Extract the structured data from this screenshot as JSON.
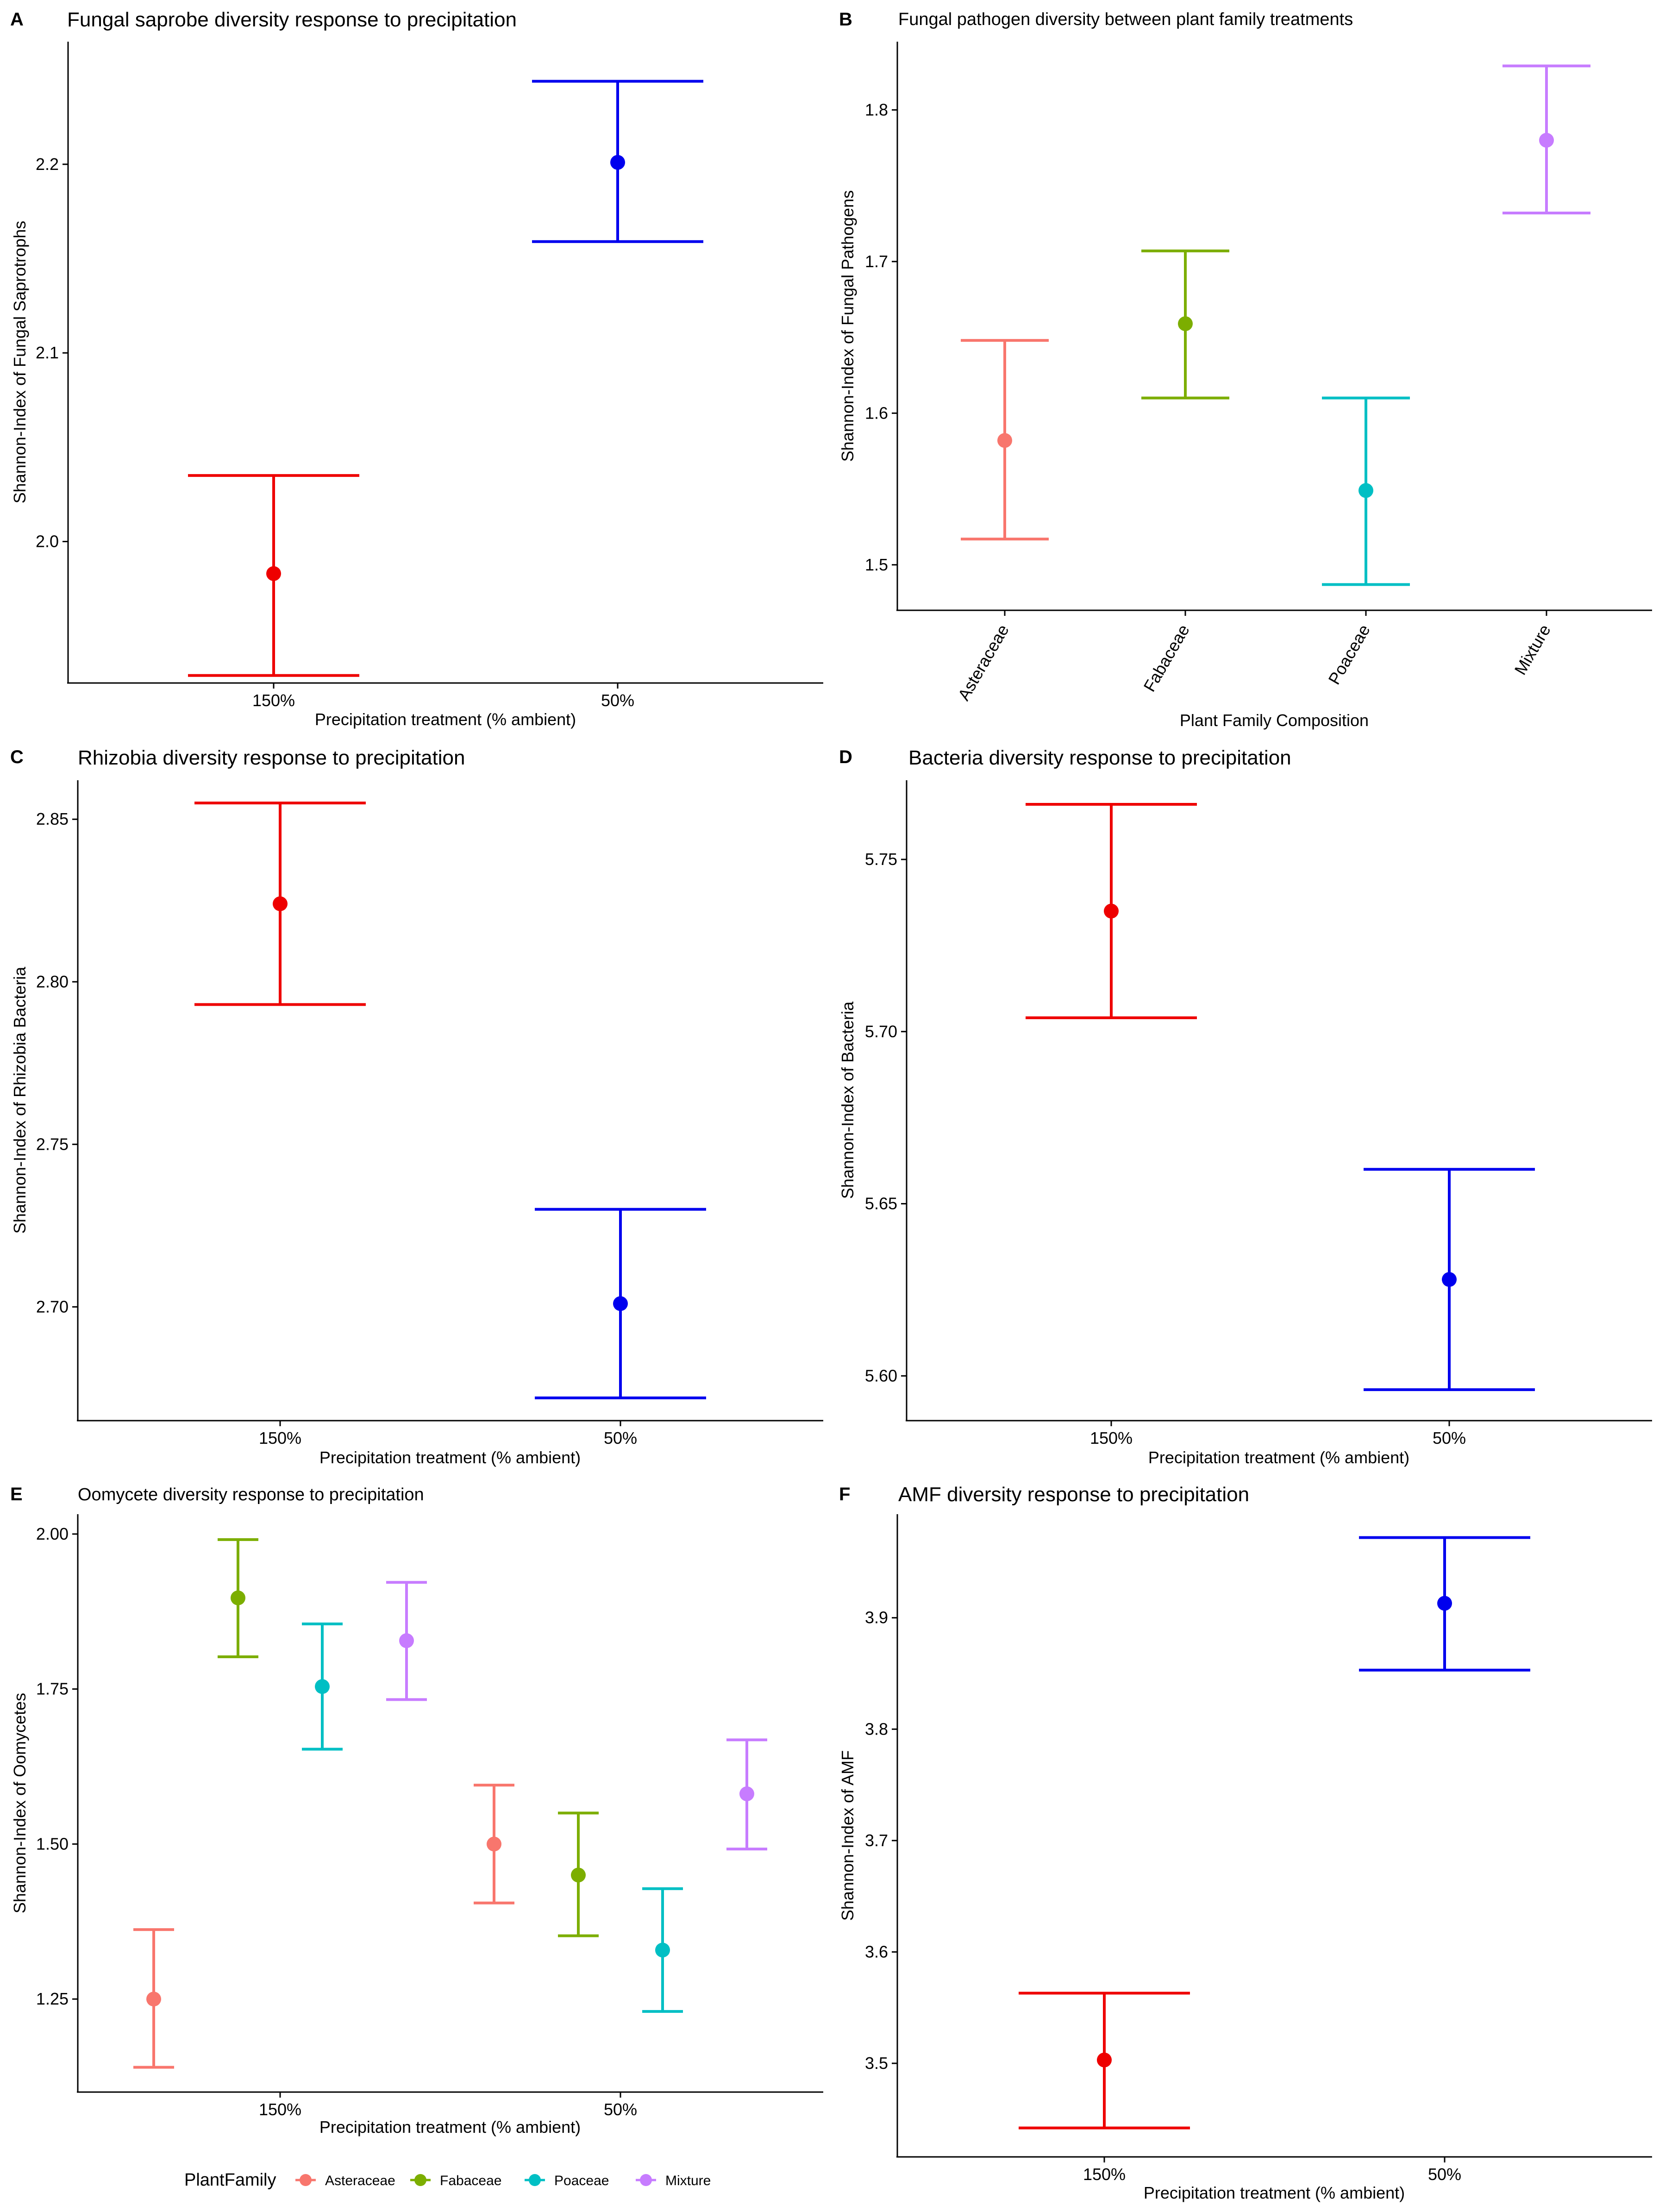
{
  "figure": {
    "legend_title": "PlantFamily"
  },
  "chart_data": [
    {
      "panel": "A",
      "type": "errorbar",
      "title": "Fungal saprobe diversity response to precipitation",
      "xlabel": "Precipitation treatment (% ambient)",
      "ylabel": "Shannon-Index of Fungal Saprotrophs",
      "categories": [
        "150%",
        "50%"
      ],
      "ylim": [
        1.925,
        2.265
      ],
      "yticks": [
        2.0,
        2.1,
        2.2
      ],
      "ytick_decimals": 1,
      "points": [
        {
          "category": "150%",
          "mean": 1.983,
          "lower": 1.929,
          "upper": 2.035,
          "color": "#EE0000"
        },
        {
          "category": "50%",
          "mean": 2.201,
          "lower": 2.159,
          "upper": 2.244,
          "color": "#0000EE"
        }
      ]
    },
    {
      "panel": "B",
      "type": "errorbar",
      "title": "Fungal pathogen diversity between plant family treatments",
      "xlabel": "Plant Family Composition",
      "ylabel": "Shannon-Index of Fungal Pathogens",
      "categories": [
        "Asteraceae",
        "Fabaceae",
        "Poaceae",
        "Mixture"
      ],
      "xtick_rotation": -60,
      "ylim": [
        1.47,
        1.845
      ],
      "yticks": [
        1.5,
        1.6,
        1.7,
        1.8
      ],
      "ytick_decimals": 1,
      "points": [
        {
          "category": "Asteraceae",
          "mean": 1.582,
          "lower": 1.517,
          "upper": 1.648,
          "color": "#F8766D"
        },
        {
          "category": "Fabaceae",
          "mean": 1.659,
          "lower": 1.61,
          "upper": 1.707,
          "color": "#7CAE00"
        },
        {
          "category": "Poaceae",
          "mean": 1.549,
          "lower": 1.487,
          "upper": 1.61,
          "color": "#00BFC4"
        },
        {
          "category": "Mixture",
          "mean": 1.78,
          "lower": 1.732,
          "upper": 1.829,
          "color": "#C77CFF"
        }
      ]
    },
    {
      "panel": "C",
      "type": "errorbar",
      "title": "Rhizobia diversity response to precipitation",
      "xlabel": "Precipitation treatment (% ambient)",
      "ylabel": "Shannon-Index of Rhizobia Bacteria",
      "categories": [
        "150%",
        "50%"
      ],
      "ylim": [
        2.665,
        2.862
      ],
      "yticks": [
        2.7,
        2.75,
        2.8,
        2.85
      ],
      "ytick_decimals": 2,
      "points": [
        {
          "category": "150%",
          "mean": 2.824,
          "lower": 2.793,
          "upper": 2.855,
          "color": "#EE0000"
        },
        {
          "category": "50%",
          "mean": 2.701,
          "lower": 2.672,
          "upper": 2.73,
          "color": "#0000EE"
        }
      ]
    },
    {
      "panel": "D",
      "type": "errorbar",
      "title": "Bacteria diversity response to precipitation",
      "xlabel": "Precipitation treatment (% ambient)",
      "ylabel": "Shannon-Index of Bacteria",
      "categories": [
        "150%",
        "50%"
      ],
      "ylim": [
        5.587,
        5.773
      ],
      "yticks": [
        5.6,
        5.65,
        5.7,
        5.75
      ],
      "ytick_decimals": 2,
      "points": [
        {
          "category": "150%",
          "mean": 5.735,
          "lower": 5.704,
          "upper": 5.766,
          "color": "#EE0000"
        },
        {
          "category": "50%",
          "mean": 5.628,
          "lower": 5.596,
          "upper": 5.66,
          "color": "#0000EE"
        }
      ]
    },
    {
      "panel": "E",
      "type": "errorbar",
      "title": "Oomycete diversity response to precipitation",
      "xlabel": "Precipitation treatment (% ambient)",
      "ylabel": "Shannon-Index of Oomycetes",
      "categories": [
        "150%",
        "50%"
      ],
      "ylim": [
        1.1,
        2.032
      ],
      "yticks": [
        1.25,
        1.5,
        1.75,
        2.0
      ],
      "ytick_decimals": 2,
      "dodge": [
        "Asteraceae",
        "Fabaceae",
        "Poaceae",
        "Mixture"
      ],
      "points": [
        {
          "category": "150%",
          "group": "Asteraceae",
          "mean": 1.25,
          "lower": 1.14,
          "upper": 1.362,
          "color": "#F8766D"
        },
        {
          "category": "150%",
          "group": "Fabaceae",
          "mean": 1.897,
          "lower": 1.802,
          "upper": 1.991,
          "color": "#7CAE00"
        },
        {
          "category": "150%",
          "group": "Poaceae",
          "mean": 1.754,
          "lower": 1.653,
          "upper": 1.855,
          "color": "#00BFC4"
        },
        {
          "category": "150%",
          "group": "Mixture",
          "mean": 1.828,
          "lower": 1.733,
          "upper": 1.922,
          "color": "#C77CFF"
        },
        {
          "category": "50%",
          "group": "Asteraceae",
          "mean": 1.5,
          "lower": 1.405,
          "upper": 1.595,
          "color": "#F8766D"
        },
        {
          "category": "50%",
          "group": "Fabaceae",
          "mean": 1.45,
          "lower": 1.352,
          "upper": 1.55,
          "color": "#7CAE00"
        },
        {
          "category": "50%",
          "group": "Poaceae",
          "mean": 1.329,
          "lower": 1.23,
          "upper": 1.428,
          "color": "#00BFC4"
        },
        {
          "category": "50%",
          "group": "Mixture",
          "mean": 1.581,
          "lower": 1.492,
          "upper": 1.668,
          "color": "#C77CFF"
        }
      ],
      "legend": {
        "title": "PlantFamily",
        "position": "bottom",
        "entries": [
          {
            "label": "Asteraceae",
            "color": "#F8766D"
          },
          {
            "label": "Fabaceae",
            "color": "#7CAE00"
          },
          {
            "label": "Poaceae",
            "color": "#00BFC4"
          },
          {
            "label": "Mixture",
            "color": "#C77CFF"
          }
        ]
      }
    },
    {
      "panel": "F",
      "type": "errorbar",
      "title": "AMF diversity response to precipitation",
      "xlabel": "Precipitation treatment (% ambient)",
      "ylabel": "Shannon-Index of AMF",
      "categories": [
        "150%",
        "50%"
      ],
      "ylim": [
        3.416,
        3.993
      ],
      "yticks": [
        3.5,
        3.6,
        3.7,
        3.8,
        3.9
      ],
      "ytick_decimals": 1,
      "points": [
        {
          "category": "150%",
          "mean": 3.503,
          "lower": 3.442,
          "upper": 3.563,
          "color": "#EE0000"
        },
        {
          "category": "50%",
          "mean": 3.913,
          "lower": 3.853,
          "upper": 3.972,
          "color": "#0000EE"
        }
      ]
    }
  ]
}
